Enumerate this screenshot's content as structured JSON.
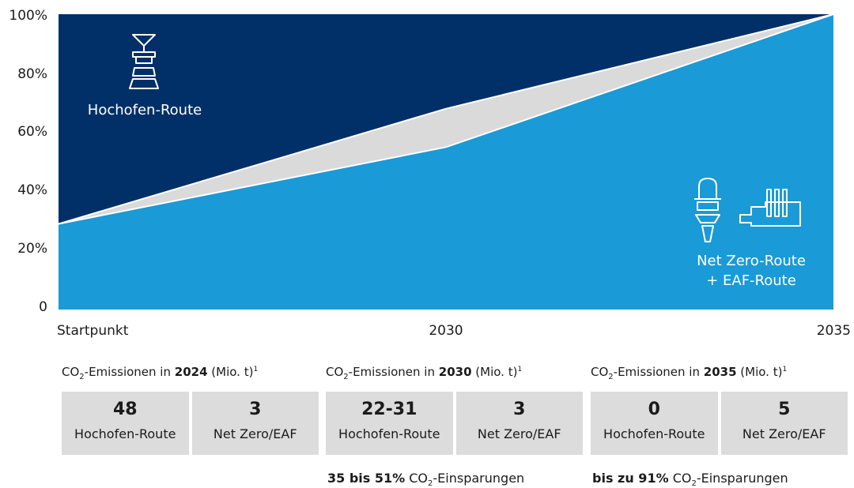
{
  "chart_data": {
    "type": "area",
    "x": [
      "Startpunkt",
      "2030",
      "2035"
    ],
    "series": [
      {
        "values": [
          29,
          55,
          100
        ],
        "color": "#1a9ad6"
      },
      {
        "values": [
          29,
          68,
          100
        ],
        "color": "#dadada"
      },
      {
        "values": [
          100,
          100,
          100
        ],
        "color": "#013068"
      }
    ],
    "ylim": [
      0,
      100
    ],
    "y_ticks": [
      "0",
      "20%",
      "40%",
      "60%",
      "80%",
      "100%"
    ],
    "region_labels": {
      "top": "Hochofen-Route",
      "bottom_line1": "Net Zero-Route",
      "bottom_line2": "+ EAF-Route"
    }
  },
  "panels": [
    {
      "head_pre": "CO",
      "head_sub": "2",
      "head_mid": "-Emissionen in ",
      "head_year": "2024",
      "head_unit": " (Mio. t)",
      "head_sup": "1",
      "a_value": "48",
      "a_label": "Hochofen-Route",
      "b_value": "3",
      "b_label": "Net Zero/EAF",
      "note_bold": "",
      "note_pre": "",
      "note_sub": "",
      "note_post": ""
    },
    {
      "head_pre": "CO",
      "head_sub": "2",
      "head_mid": "-Emissionen in ",
      "head_year": "2030",
      "head_unit": " (Mio. t)",
      "head_sup": "1",
      "a_value": "22-31",
      "a_label": "Hochofen-Route",
      "b_value": "3",
      "b_label": "Net Zero/EAF",
      "note_bold": "35 bis 51%",
      "note_pre": " CO",
      "note_sub": "2",
      "note_post": "-Einsparungen"
    },
    {
      "head_pre": "CO",
      "head_sub": "2",
      "head_mid": "-Emissionen in ",
      "head_year": "2035",
      "head_unit": " (Mio. t)",
      "head_sup": "1",
      "a_value": "0",
      "a_label": "Hochofen-Route",
      "b_value": "5",
      "b_label": "Net Zero/EAF",
      "note_bold": "bis zu 91%",
      "note_pre": " CO",
      "note_sub": "2",
      "note_post": "-Einsparungen"
    }
  ]
}
